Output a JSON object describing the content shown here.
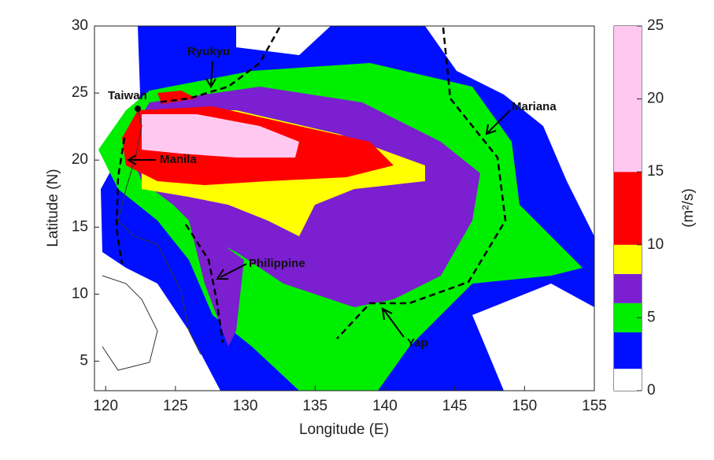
{
  "chart_data": {
    "type": "map",
    "xlabel": "Longitude (E)",
    "ylabel": "Latitude (N)",
    "xlim": [
      119.2,
      155
    ],
    "ylim": [
      2.8,
      30
    ],
    "xticks": [
      120,
      125,
      130,
      135,
      140,
      145,
      150,
      155
    ],
    "yticks": [
      5,
      10,
      15,
      20,
      25,
      30
    ],
    "colorbar": {
      "label": "(m²/s)",
      "levels": [
        0,
        1.5,
        4,
        6,
        8,
        10,
        15,
        25
      ],
      "colors": [
        "#ffffff",
        "#0010ff",
        "#00ee00",
        "#7b1fd0",
        "#ffff00",
        "#ff0000",
        "#ffc8f0"
      ],
      "ticks": [
        0,
        5,
        10,
        15,
        20,
        25
      ]
    },
    "annotations": [
      "Ryukyu",
      "Taiwan",
      "Manila",
      "Mariana",
      "Philippine",
      "Yap"
    ]
  }
}
